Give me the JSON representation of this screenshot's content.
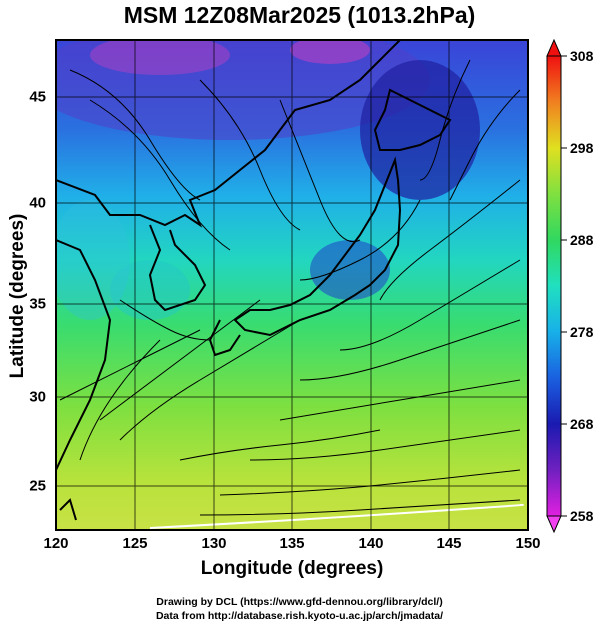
{
  "title": "MSM 12Z08Mar2025 (1013.2hPa)",
  "xlabel": "Longitude (degrees)",
  "ylabel": "Latitude  (degrees)",
  "x_ticks": [
    "120",
    "125",
    "130",
    "135",
    "140",
    "145",
    "150"
  ],
  "y_ticks": [
    "25",
    "30",
    "35",
    "40",
    "45"
  ],
  "colorbar_ticks": [
    "308",
    "298",
    "288",
    "278",
    "268",
    "258"
  ],
  "credit_line1": "Drawing by DCL (https://www.gfd-dennou.org/library/dcl/)",
  "credit_line2": "Data from http://database.rish.kyoto-u.ac.jp/arch/jmadata/",
  "colors": {
    "cold": "#1a1aa8",
    "mid": "#18c8e0",
    "warm": "#c8e040",
    "land_outline": "#000000"
  },
  "chart_data": {
    "type": "heatmap",
    "variable": "temperature with wind streamlines",
    "units": "K",
    "xlim": [
      120,
      150
    ],
    "ylim": [
      22.5,
      47.7
    ],
    "colorbar_range": [
      258,
      308
    ],
    "grid": true
  }
}
